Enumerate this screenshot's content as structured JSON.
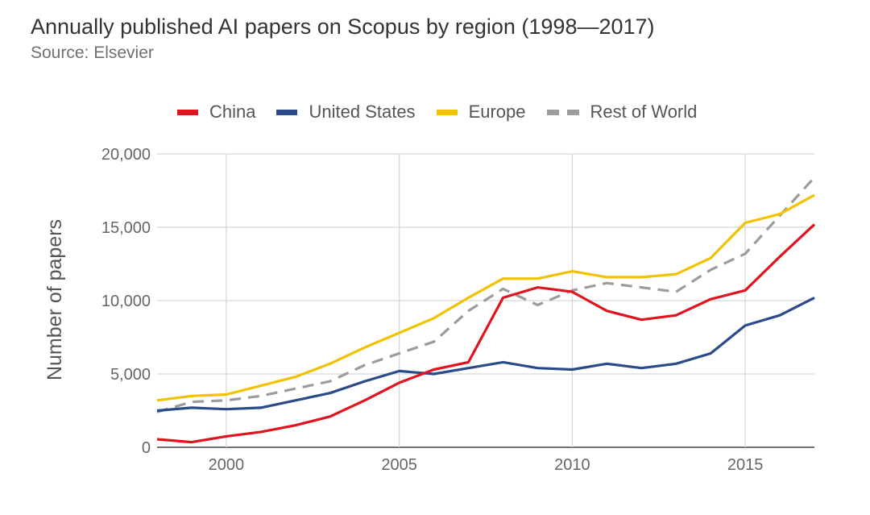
{
  "chart_data": {
    "type": "line",
    "title": "Annually published AI papers on Scopus by region (1998—2017)",
    "subtitle": "Source: Elsevier",
    "ylabel": "Number of papers",
    "xlabel": "",
    "xlim": [
      1998,
      2017
    ],
    "ylim": [
      0,
      20000
    ],
    "x_ticks": [
      2000,
      2005,
      2010,
      2015
    ],
    "y_ticks": [
      0,
      5000,
      10000,
      15000,
      20000
    ],
    "y_tick_labels": [
      "0",
      "5,000",
      "10,000",
      "15,000",
      "20,000"
    ],
    "grid": true,
    "legend_position": "top",
    "x": [
      1998,
      1999,
      2000,
      2001,
      2002,
      2003,
      2004,
      2005,
      2006,
      2007,
      2008,
      2009,
      2010,
      2011,
      2012,
      2013,
      2014,
      2015,
      2016,
      2017
    ],
    "series": [
      {
        "name": "China",
        "color": "#e0141e",
        "style": "solid",
        "values": [
          550,
          350,
          750,
          1050,
          1500,
          2100,
          3200,
          4400,
          5300,
          5800,
          10200,
          10900,
          10600,
          9300,
          8700,
          9000,
          10100,
          10700,
          13000,
          15200
        ]
      },
      {
        "name": "United States",
        "color": "#2a4a8a",
        "style": "solid",
        "values": [
          2500,
          2700,
          2600,
          2700,
          3200,
          3700,
          4500,
          5200,
          5000,
          5400,
          5800,
          5400,
          5300,
          5700,
          5400,
          5700,
          6400,
          8300,
          9000,
          10200
        ]
      },
      {
        "name": "Europe",
        "color": "#f2c200",
        "style": "solid",
        "values": [
          3200,
          3500,
          3600,
          4200,
          4800,
          5700,
          6800,
          7800,
          8800,
          10200,
          11500,
          11500,
          12000,
          11600,
          11600,
          11800,
          12900,
          15300,
          15900,
          17200
        ]
      },
      {
        "name": "Rest of World",
        "color": "#9c9c9c",
        "style": "dashed",
        "values": [
          2400,
          3100,
          3200,
          3500,
          4000,
          4500,
          5600,
          6400,
          7200,
          9300,
          10800,
          9700,
          10700,
          11200,
          10900,
          10600,
          12100,
          13200,
          15800,
          18400
        ]
      }
    ]
  }
}
